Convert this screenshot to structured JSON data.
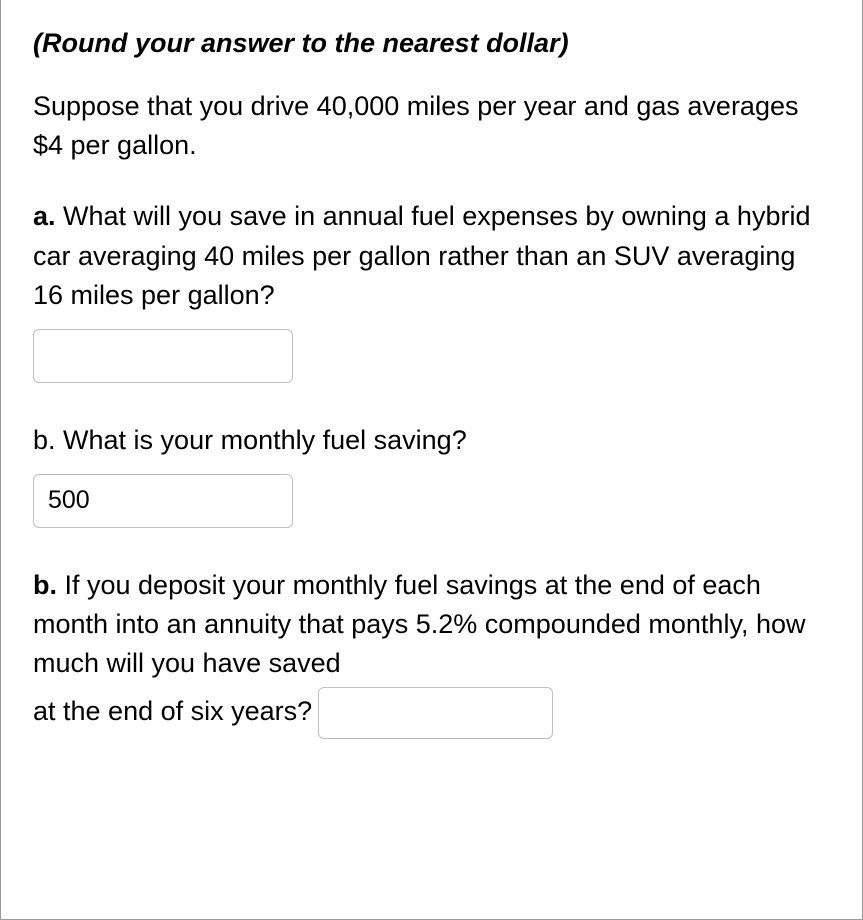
{
  "instruction": "(Round your answer to the nearest dollar)",
  "intro": "Suppose that you drive 40,000 miles per year and gas averages $4 per gallon.",
  "qa": {
    "label": "a.",
    "text": " What will you save in annual fuel expenses by owning a hybrid car averaging 40 miles per gallon rather than an SUV averaging 16 miles per gallon?",
    "value": ""
  },
  "qb1": {
    "label": "b.  ",
    "text": "What is your monthly fuel saving?",
    "value": "500"
  },
  "qb2": {
    "label": "b.",
    "text_part1": " If you deposit your monthly fuel savings at the end of each month into an annuity that pays 5.2% compounded monthly, how much will you have saved",
    "text_part2": "at the end of six years?",
    "value": ""
  }
}
